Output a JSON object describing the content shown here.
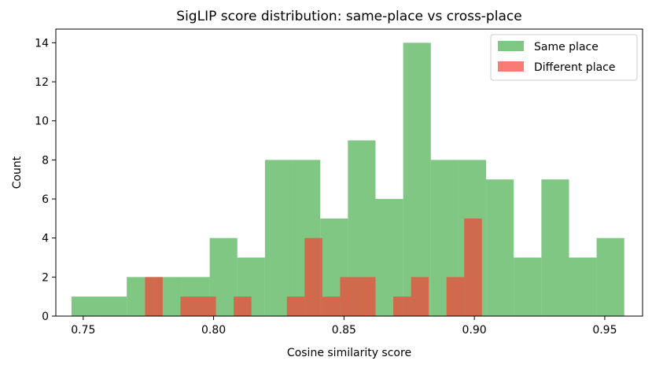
{
  "chart_data": {
    "type": "bar",
    "title": "SigLIP score distribution: same-place vs cross-place",
    "xlabel": "Cosine similarity score",
    "ylabel": "Count",
    "xlim": [
      0.7395,
      0.9645
    ],
    "ylim": [
      0,
      14.7
    ],
    "xticks": [
      0.75,
      0.8,
      0.85,
      0.9,
      0.95
    ],
    "xtick_labels": [
      "0.75",
      "0.80",
      "0.85",
      "0.90",
      "0.95"
    ],
    "yticks": [
      0,
      2,
      4,
      6,
      8,
      10,
      12,
      14
    ],
    "ytick_labels": [
      "0",
      "2",
      "4",
      "6",
      "8",
      "10",
      "12",
      "14"
    ],
    "grid": false,
    "legend_position": "top-right",
    "series": [
      {
        "name": "Same place",
        "color": "#4caf50",
        "opacity": 0.7,
        "bin_start": 0.7455,
        "bin_width": 0.0106,
        "counts": [
          1,
          1,
          2,
          2,
          2,
          4,
          3,
          8,
          8,
          5,
          9,
          6,
          14,
          8,
          8,
          7,
          3,
          7,
          3,
          4
        ]
      },
      {
        "name": "Different place",
        "color": "#f44336",
        "opacity": 0.7,
        "bin_start": 0.7737,
        "bin_width": 0.0068,
        "counts": [
          2,
          0,
          1,
          1,
          0,
          1,
          0,
          0,
          1,
          4,
          1,
          2,
          2,
          0,
          1,
          2,
          0,
          2,
          5
        ]
      }
    ]
  }
}
